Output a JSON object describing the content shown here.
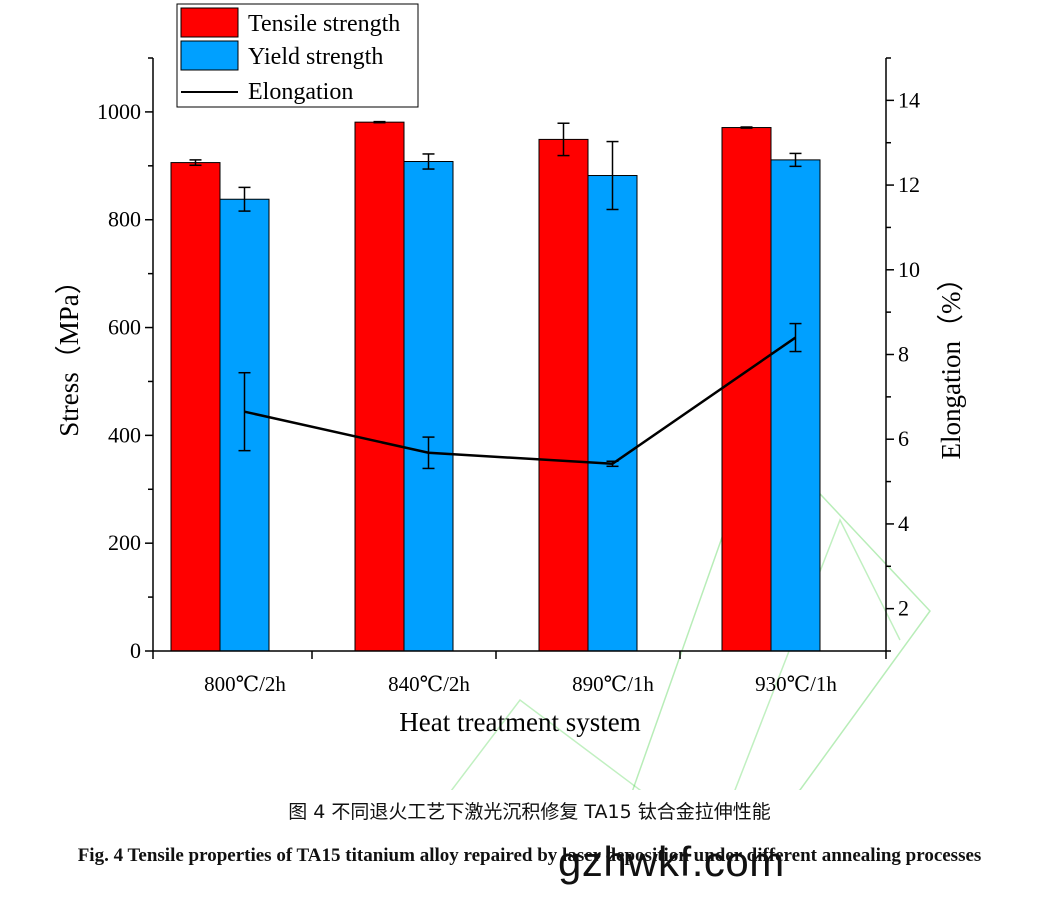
{
  "chart_data": {
    "type": "bar",
    "xlabel": "Heat treatment system",
    "ylabel": "Stress（MPa）",
    "y2label": "Elongation（%）",
    "categories": [
      "800℃/2h",
      "840℃/2h",
      "890℃/1h",
      "930℃/1h"
    ],
    "ylim": [
      0,
      1100
    ],
    "yticks": [
      0,
      200,
      400,
      600,
      800,
      1000
    ],
    "y2lim": [
      1,
      15
    ],
    "y2ticks": [
      2,
      4,
      6,
      8,
      10,
      12,
      14
    ],
    "legend_position": "top-left",
    "series": [
      {
        "name": "Tensile strength",
        "kind": "bar",
        "axis": "left",
        "color": "#ff0000",
        "values": [
          906,
          981,
          949,
          971
        ],
        "errors": [
          5,
          1,
          30,
          1
        ]
      },
      {
        "name": "Yield strength",
        "kind": "bar",
        "axis": "left",
        "color": "#00a0ff",
        "values": [
          838,
          908,
          882,
          911
        ],
        "errors": [
          22,
          14,
          63,
          12
        ]
      },
      {
        "name": "Elongation",
        "kind": "line",
        "axis": "right",
        "color": "#000000",
        "values": [
          6.65,
          5.68,
          5.42,
          8.4
        ],
        "errors": [
          0.92,
          0.37,
          0.06,
          0.33
        ]
      }
    ]
  },
  "caption": {
    "chinese": "图 4  不同退火工艺下激光沉积修复 TA15 钛合金拉伸性能",
    "english": "Fig. 4 Tensile properties of TA15 titanium alloy repaired by laser deposition under different annealing processes"
  },
  "watermark": {
    "text": "gzhwkf.com",
    "color": "#33cc33"
  }
}
